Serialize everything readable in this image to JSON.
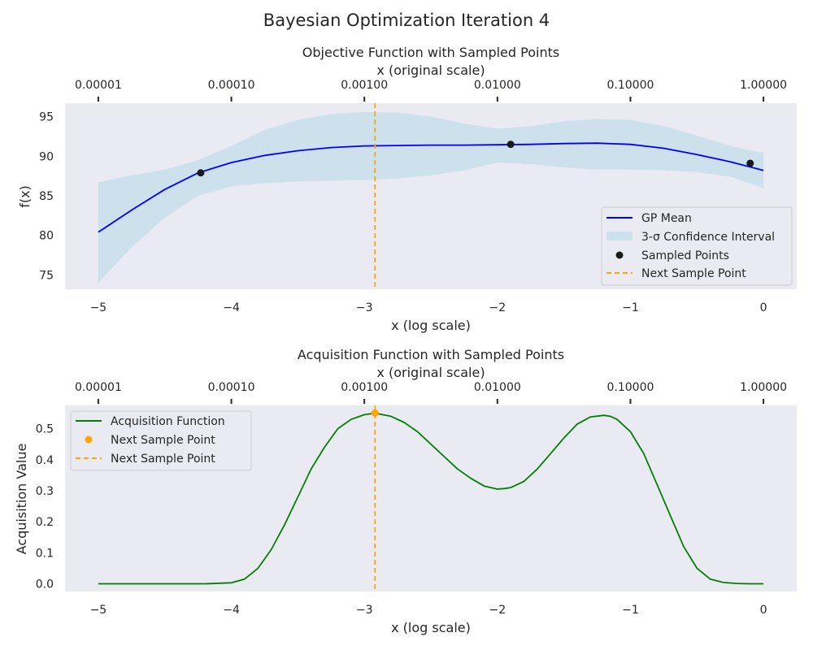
{
  "figure": {
    "suptitle": "Bayesian Optimization Iteration 4"
  },
  "colors": {
    "background": "#eaeaf2",
    "gp_mean": "#0000ff",
    "confidence_interval": "#add8e6",
    "sampled_points": "#1a1a1a",
    "next_sample": "#ffa500",
    "acquisition": "#008000"
  },
  "chart_data": [
    {
      "type": "line",
      "title": "Objective Function with Sampled Points",
      "secondary_xlabel": "x (original scale)",
      "secondary_xticks": [
        {
          "x": -5,
          "label": "0.00001"
        },
        {
          "x": -4,
          "label": "0.00010"
        },
        {
          "x": -3,
          "label": "0.00100"
        },
        {
          "x": -2,
          "label": "0.01000"
        },
        {
          "x": -1,
          "label": "0.10000"
        },
        {
          "x": 0,
          "label": "1.00000"
        }
      ],
      "xlabel": "x (log scale)",
      "ylabel": "f(x)",
      "xlim": [
        -5.25,
        0.25
      ],
      "ylim": [
        73.2,
        96.7
      ],
      "xticks": [
        -5,
        -4,
        -3,
        -2,
        -1,
        0
      ],
      "xtick_labels": [
        "−5",
        "−4",
        "−3",
        "−2",
        "−1",
        "0"
      ],
      "yticks": [
        75,
        80,
        85,
        90,
        95
      ],
      "grid": false,
      "legend": {
        "position": "lower right",
        "entries": [
          "GP Mean",
          "3-σ Confidence Interval",
          "Sampled Points",
          "Next Sample Point"
        ]
      },
      "series": [
        {
          "name": "GP Mean",
          "kind": "line",
          "x": [
            -5,
            -4.75,
            -4.5,
            -4.25,
            -4,
            -3.75,
            -3.5,
            -3.25,
            -3,
            -2.75,
            -2.5,
            -2.25,
            -2,
            -1.75,
            -1.5,
            -1.25,
            -1,
            -0.75,
            -0.5,
            -0.25,
            0
          ],
          "y": [
            80.4,
            83.2,
            85.8,
            87.9,
            89.2,
            90.1,
            90.7,
            91.1,
            91.3,
            91.35,
            91.4,
            91.4,
            91.45,
            91.5,
            91.6,
            91.65,
            91.5,
            91.0,
            90.2,
            89.3,
            88.2
          ]
        },
        {
          "name": "3-σ Confidence Interval",
          "kind": "band",
          "x": [
            -5,
            -4.75,
            -4.5,
            -4.25,
            -4,
            -3.75,
            -3.5,
            -3.25,
            -3,
            -2.75,
            -2.5,
            -2.25,
            -2,
            -1.75,
            -1.5,
            -1.25,
            -1,
            -0.75,
            -0.5,
            -0.25,
            0
          ],
          "lower": [
            74.0,
            78.5,
            82.2,
            85.0,
            86.2,
            86.6,
            86.8,
            86.9,
            87.0,
            87.2,
            87.6,
            88.2,
            89.2,
            89.0,
            88.6,
            88.3,
            88.3,
            88.2,
            88.0,
            87.4,
            86.0
          ],
          "upper": [
            86.7,
            87.6,
            88.3,
            89.5,
            91.3,
            93.3,
            94.6,
            95.3,
            95.6,
            95.5,
            95.0,
            94.1,
            93.5,
            93.8,
            94.4,
            94.7,
            94.6,
            93.8,
            92.6,
            91.3,
            90.4
          ]
        },
        {
          "name": "Sampled Points",
          "kind": "scatter",
          "x": [
            -4.23,
            -1.9,
            -0.1
          ],
          "y": [
            87.9,
            91.5,
            89.1
          ]
        },
        {
          "name": "Next Sample Point",
          "kind": "vline",
          "x": -2.92
        }
      ]
    },
    {
      "type": "line",
      "title": "Acquisition Function with Sampled Points",
      "secondary_xlabel": "x (original scale)",
      "secondary_xticks": [
        {
          "x": -5,
          "label": "0.00001"
        },
        {
          "x": -4,
          "label": "0.00010"
        },
        {
          "x": -3,
          "label": "0.00100"
        },
        {
          "x": -2,
          "label": "0.01000"
        },
        {
          "x": -1,
          "label": "0.10000"
        },
        {
          "x": 0,
          "label": "1.00000"
        }
      ],
      "xlabel": "x (log scale)",
      "ylabel": "Acquisition Value",
      "xlim": [
        -5.25,
        0.25
      ],
      "ylim": [
        -0.025,
        0.575
      ],
      "xticks": [
        -5,
        -4,
        -3,
        -2,
        -1,
        0
      ],
      "xtick_labels": [
        "−5",
        "−4",
        "−3",
        "−2",
        "−1",
        "0"
      ],
      "yticks": [
        0.0,
        0.1,
        0.2,
        0.3,
        0.4,
        0.5
      ],
      "ytick_labels": [
        "0.0",
        "0.1",
        "0.2",
        "0.3",
        "0.4",
        "0.5"
      ],
      "grid": false,
      "legend": {
        "position": "upper left",
        "entries": [
          "Acquisition Function",
          "Next Sample Point",
          "Next Sample Point"
        ]
      },
      "series": [
        {
          "name": "Acquisition Function",
          "kind": "line",
          "x": [
            -5,
            -4.5,
            -4.2,
            -4.0,
            -3.9,
            -3.8,
            -3.7,
            -3.6,
            -3.5,
            -3.4,
            -3.3,
            -3.2,
            -3.1,
            -3.0,
            -2.92,
            -2.8,
            -2.7,
            -2.6,
            -2.5,
            -2.4,
            -2.3,
            -2.2,
            -2.1,
            -2.0,
            -1.95,
            -1.9,
            -1.8,
            -1.7,
            -1.6,
            -1.5,
            -1.4,
            -1.3,
            -1.2,
            -1.15,
            -1.1,
            -1.0,
            -0.9,
            -0.8,
            -0.7,
            -0.6,
            -0.5,
            -0.4,
            -0.3,
            -0.2,
            -0.1,
            0
          ],
          "y": [
            0.0,
            0.0,
            0.0,
            0.003,
            0.015,
            0.05,
            0.11,
            0.19,
            0.28,
            0.37,
            0.44,
            0.5,
            0.53,
            0.545,
            0.55,
            0.54,
            0.52,
            0.49,
            0.45,
            0.41,
            0.37,
            0.34,
            0.315,
            0.305,
            0.307,
            0.31,
            0.33,
            0.37,
            0.42,
            0.47,
            0.515,
            0.538,
            0.543,
            0.54,
            0.53,
            0.49,
            0.42,
            0.32,
            0.22,
            0.12,
            0.05,
            0.015,
            0.004,
            0.001,
            0.0,
            0.0
          ]
        },
        {
          "name": "Next Sample Point",
          "kind": "scatter",
          "x": [
            -2.92
          ],
          "y": [
            0.55
          ]
        },
        {
          "name": "Next Sample Point",
          "kind": "vline",
          "x": -2.92
        }
      ]
    }
  ]
}
